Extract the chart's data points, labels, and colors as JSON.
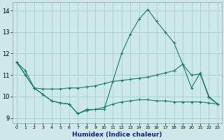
{
  "xlabel": "Humidex (Indice chaleur)",
  "xlim": [
    -0.5,
    23.5
  ],
  "ylim": [
    8.75,
    14.4
  ],
  "yticks": [
    9,
    10,
    11,
    12,
    13,
    14
  ],
  "xticks": [
    0,
    1,
    2,
    3,
    4,
    5,
    6,
    7,
    8,
    9,
    10,
    11,
    12,
    13,
    14,
    15,
    16,
    17,
    18,
    19,
    20,
    21,
    22,
    23
  ],
  "bg_color": "#cce8e8",
  "grid_color": "#aacccc",
  "line_color": "#1a7a6e",
  "lines": [
    {
      "x": [
        0,
        1,
        2,
        3,
        4,
        5,
        6,
        7,
        8,
        9,
        10,
        11,
        12,
        13,
        14,
        15,
        16,
        17,
        18,
        19,
        20,
        21,
        22,
        23
      ],
      "y": [
        11.6,
        11.2,
        10.4,
        10.1,
        9.8,
        9.7,
        9.65,
        9.2,
        9.4,
        9.4,
        9.4,
        10.7,
        12.0,
        12.9,
        13.6,
        14.05,
        13.5,
        13.0,
        12.5,
        11.5,
        10.4,
        11.1,
        10.0,
        9.65
      ]
    },
    {
      "x": [
        0,
        1,
        2,
        3,
        4,
        5,
        6,
        7,
        8,
        9,
        10,
        11,
        12,
        13,
        14,
        15,
        16,
        17,
        18,
        19,
        20,
        21,
        22,
        23
      ],
      "y": [
        11.6,
        11.0,
        10.4,
        10.35,
        10.35,
        10.35,
        10.4,
        10.4,
        10.45,
        10.5,
        10.6,
        10.7,
        10.75,
        10.8,
        10.85,
        10.9,
        11.0,
        11.1,
        11.2,
        11.5,
        11.0,
        11.05,
        9.95,
        9.65
      ]
    },
    {
      "x": [
        0,
        1,
        2,
        3,
        4,
        5,
        6,
        7,
        8,
        9,
        10,
        11,
        12,
        13,
        14,
        15,
        16,
        17,
        18,
        19,
        20,
        21,
        22,
        23
      ],
      "y": [
        11.6,
        11.0,
        10.4,
        10.1,
        9.8,
        9.7,
        9.65,
        9.2,
        9.35,
        9.4,
        9.5,
        9.65,
        9.75,
        9.8,
        9.85,
        9.85,
        9.8,
        9.8,
        9.75,
        9.75,
        9.75,
        9.75,
        9.7,
        9.65
      ]
    }
  ]
}
